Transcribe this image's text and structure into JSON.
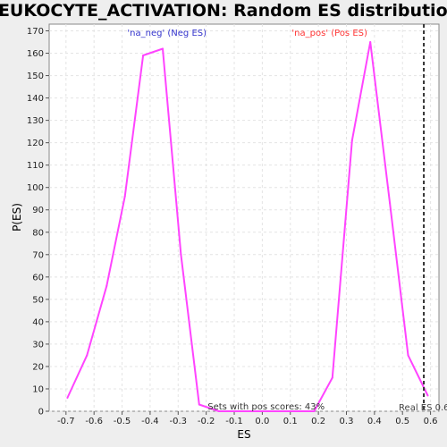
{
  "chart_data": {
    "type": "line",
    "title": "LEUKOCYTE_ACTIVATION: Random ES distribution",
    "xlabel": "ES",
    "ylabel": "P(ES)",
    "xlim": [
      -0.76,
      0.63
    ],
    "ylim": [
      0,
      173
    ],
    "x_ticks": [
      "-0.7",
      "-0.6",
      "-0.5",
      "-0.4",
      "-0.3",
      "-0.2",
      "-0.1",
      "0.0",
      "0.1",
      "0.2",
      "0.3",
      "0.4",
      "0.5",
      "0.6"
    ],
    "y_ticks": [
      "0",
      "10",
      "20",
      "30",
      "40",
      "50",
      "60",
      "70",
      "80",
      "90",
      "100",
      "110",
      "120",
      "130",
      "140",
      "150",
      "160",
      "170"
    ],
    "grid": true,
    "series": [
      {
        "color": "#ff44ff",
        "points": [
          [
            -0.695,
            6
          ],
          [
            -0.625,
            25
          ],
          [
            -0.555,
            56
          ],
          [
            -0.49,
            96
          ],
          [
            -0.425,
            159
          ],
          [
            -0.355,
            162
          ],
          [
            -0.29,
            70
          ],
          [
            -0.225,
            3
          ],
          [
            -0.155,
            0
          ],
          [
            -0.085,
            0
          ],
          [
            -0.015,
            0
          ],
          [
            0.05,
            0
          ],
          [
            0.12,
            0
          ],
          [
            0.185,
            0
          ],
          [
            0.25,
            15
          ],
          [
            0.32,
            121
          ],
          [
            0.385,
            165
          ],
          [
            0.455,
            93
          ],
          [
            0.52,
            25
          ],
          [
            0.59,
            7
          ]
        ]
      }
    ],
    "annotations": {
      "neg_label": "'na_neg' (Neg ES)",
      "neg_color": "#3333cc",
      "pos_label": "'na_pos' (Pos ES)",
      "pos_color": "#ff3333",
      "real_es_x": 0.576,
      "real_es_label": "Real ES 0.6",
      "pos_scores_label": "Sets with pos scores: 43%"
    }
  }
}
